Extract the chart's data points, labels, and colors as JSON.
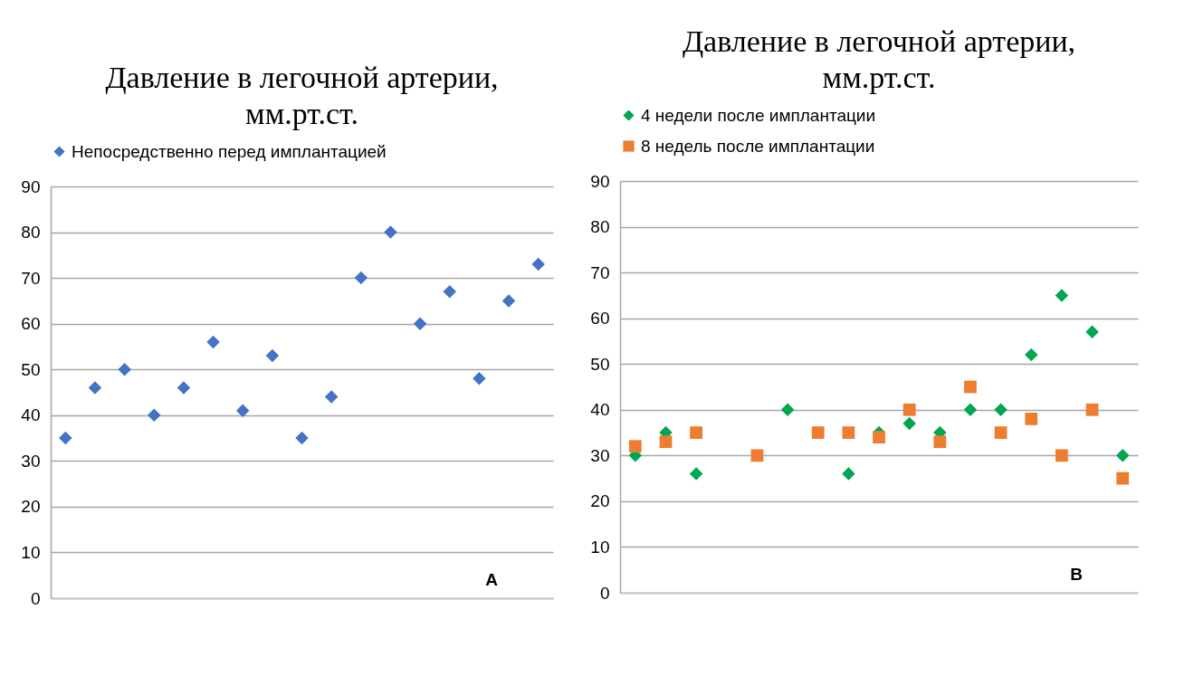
{
  "chart_data": [
    {
      "type": "scatter",
      "title": "Давление в легочной артерии,\nмм.рт.ст.",
      "categories": [
        null,
        null,
        null,
        null,
        null,
        null,
        null,
        null,
        null,
        null,
        null,
        null,
        null,
        null,
        null,
        null,
        null
      ],
      "ylim": [
        0,
        90
      ],
      "yticks": [
        0,
        10,
        20,
        30,
        40,
        50,
        60,
        70,
        80,
        90
      ],
      "grid": "y",
      "legend": "top",
      "tick_labels": "y",
      "annotations": [
        "A"
      ],
      "series": [
        {
          "name": "Непосредственно перед имплантацией",
          "color": "#4472c4",
          "marker": "diamond",
          "values": [
            35,
            46,
            50,
            40,
            46,
            56,
            41,
            53,
            35,
            44,
            70,
            80,
            60,
            67,
            48,
            65,
            73
          ]
        }
      ]
    },
    {
      "type": "scatter",
      "title": "Давление в легочной артерии,\nмм.рт.ст.",
      "categories": [
        null,
        null,
        null,
        null,
        null,
        null,
        null,
        null,
        null,
        null,
        null,
        null,
        null,
        null,
        null,
        null,
        null
      ],
      "ylim": [
        0,
        90
      ],
      "yticks": [
        0,
        10,
        20,
        30,
        40,
        50,
        60,
        70,
        80,
        90
      ],
      "grid": "y",
      "legend": "top",
      "tick_labels": "y",
      "annotations": [
        "B"
      ],
      "series": [
        {
          "name": "4 недели после имплантации",
          "color": "#00a651",
          "marker": "diamond",
          "values": [
            30,
            35,
            26,
            null,
            null,
            40,
            null,
            26,
            35,
            37,
            35,
            40,
            40,
            52,
            65,
            57,
            30
          ]
        },
        {
          "name": "8 недель после имплантации",
          "color": "#ed7d31",
          "marker": "square",
          "values": [
            32,
            33,
            35,
            null,
            30,
            null,
            35,
            35,
            34,
            40,
            33,
            45,
            35,
            38,
            30,
            40,
            25
          ]
        }
      ]
    }
  ]
}
